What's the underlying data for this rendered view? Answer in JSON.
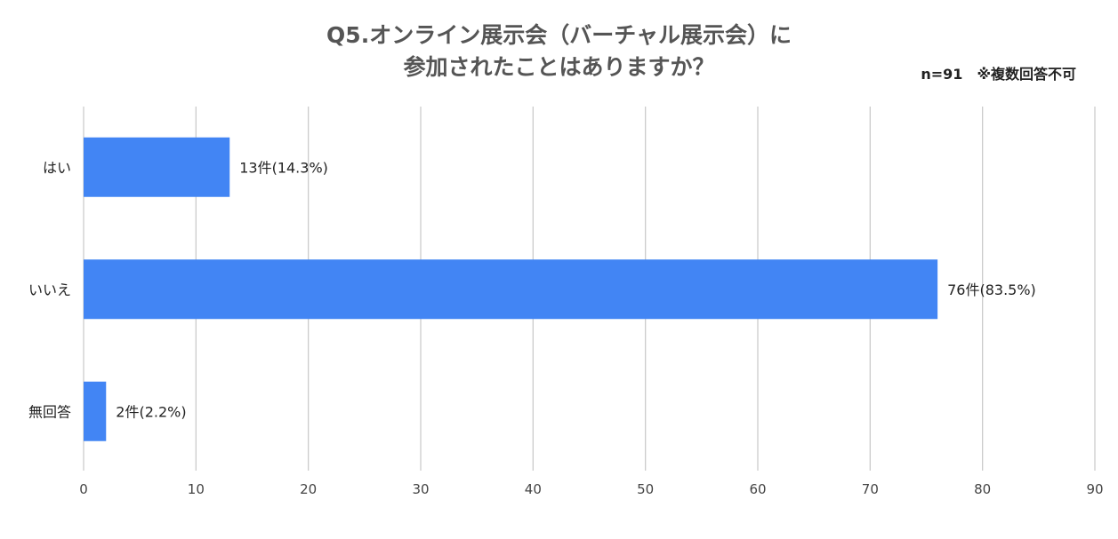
{
  "title_line1": "Q5.オンライン展示会（バーチャル展示会）に",
  "title_line2": "参加されたことはありますか？",
  "note": "n=91　※複数回答不可",
  "chart_data": {
    "type": "bar",
    "orientation": "horizontal",
    "categories": [
      "はい",
      "いいえ",
      "無回答"
    ],
    "values": [
      13,
      76,
      2
    ],
    "data_labels": [
      "13件(14.3%)",
      "76件(83.5%)",
      "2件(2.2%)"
    ],
    "xlim": [
      0,
      90
    ],
    "x_ticks": [
      0,
      10,
      20,
      30,
      40,
      50,
      60,
      70,
      80,
      90
    ],
    "grid": true,
    "bar_color": "#4285f4",
    "grid_color": "#cccccc",
    "text_color": "#222222",
    "tick_color": "#444444"
  }
}
